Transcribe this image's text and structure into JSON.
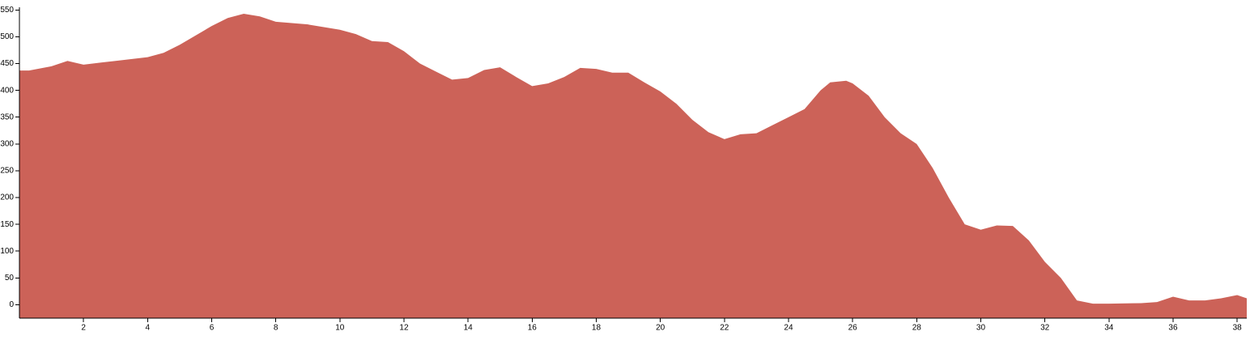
{
  "chart_data": {
    "type": "area",
    "color": "#cc6258",
    "x": [
      0,
      0.3,
      1,
      1.5,
      2,
      3,
      4,
      4.5,
      5,
      6,
      6.5,
      7,
      7.5,
      8,
      9,
      10,
      10.5,
      11,
      11.5,
      12,
      12.5,
      13,
      13.5,
      14,
      14.5,
      15,
      15.5,
      16,
      16.5,
      17,
      17.5,
      18,
      18.5,
      19,
      19.5,
      20,
      20.5,
      21,
      21.5,
      22,
      22.5,
      23,
      23.5,
      24,
      24.5,
      25,
      25.3,
      25.8,
      26,
      26.5,
      27,
      27.5,
      28,
      28.5,
      29,
      29.5,
      30,
      30.5,
      31,
      31.5,
      32,
      32.5,
      33,
      33.5,
      34,
      35,
      35.5,
      36,
      36.5,
      37,
      37.5,
      38,
      38.3
    ],
    "values": [
      437,
      437,
      445,
      455,
      448,
      455,
      462,
      470,
      485,
      520,
      535,
      543,
      538,
      528,
      523,
      513,
      505,
      492,
      490,
      473,
      450,
      435,
      420,
      423,
      438,
      443,
      425,
      408,
      413,
      425,
      442,
      440,
      433,
      433,
      415,
      398,
      375,
      345,
      322,
      309,
      318,
      320,
      335,
      350,
      365,
      400,
      415,
      418,
      413,
      390,
      350,
      320,
      300,
      255,
      200,
      150,
      140,
      148,
      147,
      120,
      80,
      50,
      8,
      2,
      2,
      3,
      5,
      15,
      8,
      8,
      12,
      18,
      12
    ],
    "xlim": [
      0,
      38.3
    ],
    "ylim": [
      -25,
      555
    ],
    "xticks": [
      2,
      4,
      6,
      8,
      10,
      12,
      14,
      16,
      18,
      20,
      22,
      24,
      26,
      28,
      30,
      32,
      34,
      36,
      38
    ],
    "yticks": [
      0,
      50,
      100,
      150,
      200,
      250,
      300,
      350,
      400,
      450,
      500,
      550
    ]
  }
}
